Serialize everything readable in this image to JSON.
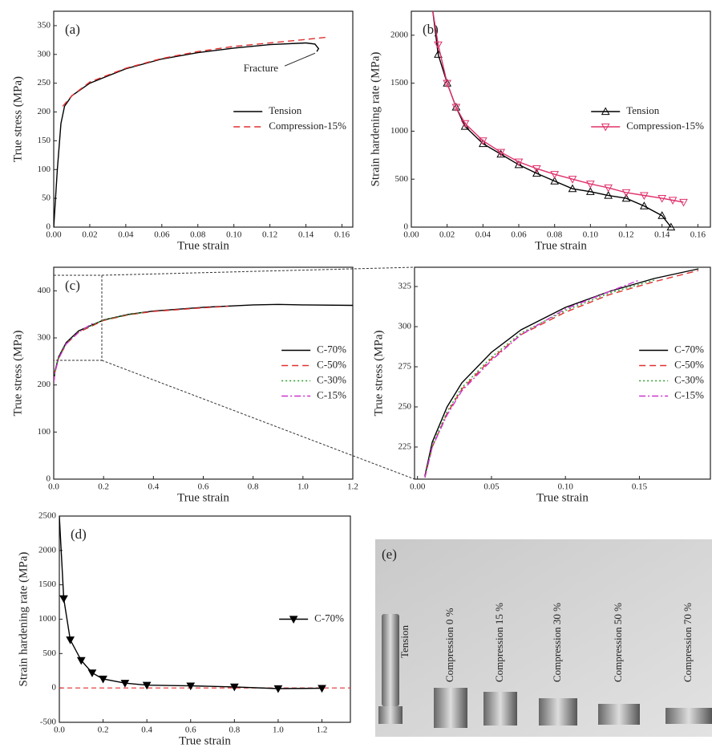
{
  "chart_data": [
    {
      "type": "line",
      "title": "(a)",
      "xlabel": "True strain",
      "ylabel": "True stress (MPa)",
      "xlim": [
        0,
        0.166
      ],
      "ylim": [
        0,
        375
      ],
      "xticks": [
        {
          "value": 0,
          "label": "0.00"
        },
        0.02,
        0.04,
        0.06,
        0.08,
        {
          "value": 0.1,
          "label": "0.10"
        },
        0.12,
        0.14,
        0.16
      ],
      "yticks": [
        0,
        50,
        100,
        150,
        200,
        250,
        300,
        350
      ],
      "legend": "center right",
      "annotation": "Fracture",
      "series": [
        {
          "name": "Tension",
          "color": "#000000",
          "style": "solid",
          "x": [
            0,
            0.002,
            0.004,
            0.006,
            0.01,
            0.02,
            0.04,
            0.06,
            0.08,
            0.1,
            0.12,
            0.14,
            0.145,
            0.147,
            0.146
          ],
          "values": [
            0,
            100,
            180,
            210,
            228,
            250,
            275,
            292,
            303,
            311,
            317,
            320,
            318,
            310,
            305
          ]
        },
        {
          "name": "Compression-15%",
          "color": "#e03030",
          "style": "dashed",
          "x": [
            0.005,
            0.01,
            0.02,
            0.04,
            0.06,
            0.08,
            0.1,
            0.12,
            0.14,
            0.152
          ],
          "values": [
            210,
            228,
            252,
            276,
            293,
            305,
            314,
            320,
            326,
            330
          ]
        }
      ]
    },
    {
      "type": "line",
      "title": "(b)",
      "xlabel": "True strain",
      "ylabel": "Strain hardening rate (MPa)",
      "xlim": [
        0,
        0.167
      ],
      "ylim": [
        0,
        2250
      ],
      "xticks": [
        {
          "value": 0,
          "label": "0.00"
        },
        0.02,
        0.04,
        0.06,
        0.08,
        {
          "value": 0.1,
          "label": "0.10"
        },
        0.12,
        0.14,
        0.16
      ],
      "yticks": [
        0,
        500,
        1000,
        1500,
        2000
      ],
      "legend": "center right",
      "series": [
        {
          "name": "Tension",
          "color": "#000000",
          "style": "solid",
          "marker": "triangle",
          "x": [
            0.012,
            0.015,
            0.02,
            0.025,
            0.03,
            0.04,
            0.05,
            0.06,
            0.07,
            0.08,
            0.09,
            0.1,
            0.11,
            0.12,
            0.13,
            0.14,
            0.145
          ],
          "values": [
            2250,
            1800,
            1500,
            1250,
            1050,
            870,
            760,
            650,
            560,
            480,
            400,
            370,
            330,
            300,
            220,
            120,
            0
          ]
        },
        {
          "name": "Compression-15%",
          "color": "#e0306a",
          "style": "solid",
          "marker": "triangle-down",
          "x": [
            0.012,
            0.015,
            0.02,
            0.025,
            0.03,
            0.04,
            0.05,
            0.06,
            0.07,
            0.08,
            0.09,
            0.1,
            0.11,
            0.12,
            0.13,
            0.14,
            0.146,
            0.152
          ],
          "values": [
            2250,
            1900,
            1500,
            1250,
            1080,
            900,
            780,
            680,
            610,
            550,
            500,
            450,
            410,
            360,
            330,
            300,
            280,
            260
          ]
        }
      ]
    },
    {
      "type": "line",
      "title": "(c)",
      "xlabel": "True strain",
      "ylabel": "True stress (MPa)",
      "xlim": [
        0,
        1.2
      ],
      "ylim": [
        0,
        450
      ],
      "xticks": [
        {
          "value": 0,
          "label": "0.0"
        },
        0.2,
        0.4,
        0.6,
        0.8,
        {
          "value": 1,
          "label": "1.0"
        },
        1.2
      ],
      "yticks": [
        0,
        100,
        200,
        300,
        400
      ],
      "legend": "center right",
      "series": [
        {
          "name": "C-70%",
          "color": "#000000",
          "style": "solid",
          "x": [
            0,
            0.005,
            0.02,
            0.05,
            0.1,
            0.2,
            0.3,
            0.4,
            0.6,
            0.8,
            0.9,
            1,
            1.2
          ],
          "values": [
            205,
            230,
            260,
            290,
            315,
            338,
            350,
            357,
            365,
            370,
            371,
            370,
            369
          ]
        },
        {
          "name": "C-50%",
          "color": "#e03030",
          "style": "dashed",
          "x": [
            0,
            0.005,
            0.02,
            0.05,
            0.1,
            0.2,
            0.3,
            0.4,
            0.6,
            0.7
          ],
          "values": [
            205,
            228,
            257,
            287,
            312,
            337,
            349,
            356,
            364,
            367
          ]
        },
        {
          "name": "C-30%",
          "color": "#2ca02c",
          "style": "dotted",
          "x": [
            0,
            0.005,
            0.02,
            0.05,
            0.1,
            0.2,
            0.3,
            0.36
          ],
          "values": [
            205,
            229,
            258,
            288,
            313,
            338,
            349,
            354
          ]
        },
        {
          "name": "C-15%",
          "color": "#cc33cc",
          "style": "dashdot",
          "x": [
            0,
            0.005,
            0.02,
            0.05,
            0.1,
            0.15,
            0.16
          ],
          "values": [
            205,
            227,
            256,
            287,
            312,
            329,
            331
          ]
        }
      ]
    },
    {
      "type": "line",
      "xlabel": "True strain",
      "ylabel": "True stress (MPa)",
      "xlim": [
        -0.002,
        0.198
      ],
      "ylim": [
        205,
        337
      ],
      "xticks": [
        {
          "value": 0,
          "label": "0.00"
        },
        0.05,
        {
          "value": 0.1,
          "label": "0.10"
        },
        0.15
      ],
      "yticks": [
        225,
        250,
        275,
        300,
        325
      ],
      "legend": "center right",
      "series": [
        {
          "name": "C-70%",
          "color": "#000000",
          "style": "solid",
          "x": [
            0.005,
            0.01,
            0.02,
            0.03,
            0.05,
            0.07,
            0.1,
            0.13,
            0.16,
            0.19
          ],
          "values": [
            207,
            228,
            250,
            265,
            284,
            298,
            312,
            322,
            330,
            336
          ]
        },
        {
          "name": "C-50%",
          "color": "#e03030",
          "style": "dashed",
          "x": [
            0.005,
            0.01,
            0.02,
            0.03,
            0.05,
            0.07,
            0.1,
            0.13,
            0.16,
            0.19
          ],
          "values": [
            206,
            225,
            246,
            261,
            280,
            295,
            309,
            320,
            328,
            335
          ]
        },
        {
          "name": "C-30%",
          "color": "#2ca02c",
          "style": "dotted",
          "x": [
            0.005,
            0.01,
            0.02,
            0.03,
            0.05,
            0.07,
            0.1,
            0.13,
            0.16
          ],
          "values": [
            206,
            226,
            247,
            262,
            281,
            296,
            310,
            321,
            329
          ]
        },
        {
          "name": "C-15%",
          "color": "#cc33cc",
          "style": "dashdot",
          "x": [
            0.005,
            0.01,
            0.02,
            0.03,
            0.05,
            0.07,
            0.1,
            0.13,
            0.15
          ],
          "values": [
            206,
            225,
            245,
            260,
            279,
            295,
            311,
            322,
            329
          ]
        }
      ]
    },
    {
      "type": "line",
      "title": "(d)",
      "xlabel": "True strain",
      "ylabel": "Strain hardening rate (MPa)",
      "xlim": [
        0,
        1.33
      ],
      "ylim": [
        -500,
        2500
      ],
      "xticks": [
        {
          "value": 0,
          "label": "0.0"
        },
        0.2,
        0.4,
        0.6,
        0.8,
        {
          "value": 1,
          "label": "1.0"
        },
        1.2
      ],
      "yticks": [
        -500,
        0,
        500,
        1000,
        1500,
        2000,
        2500
      ],
      "legend": "center right",
      "hline": {
        "value": 0,
        "color": "#e03030"
      },
      "series": [
        {
          "name": "C-70%",
          "color": "#000000",
          "style": "solid",
          "marker": "triangle-down",
          "x": [
            0,
            0.02,
            0.05,
            0.1,
            0.15,
            0.2,
            0.3,
            0.4,
            0.6,
            0.8,
            1,
            1.2
          ],
          "values": [
            2500,
            1300,
            700,
            400,
            220,
            130,
            70,
            40,
            30,
            15,
            -10,
            -5
          ]
        }
      ]
    }
  ],
  "photo": {
    "label": "(e)",
    "specimens": [
      "Tension",
      "Compression 0 %",
      "Compression 15 %",
      "Compression 30 %",
      "Compression 50 %",
      "Compression 70 %"
    ]
  }
}
